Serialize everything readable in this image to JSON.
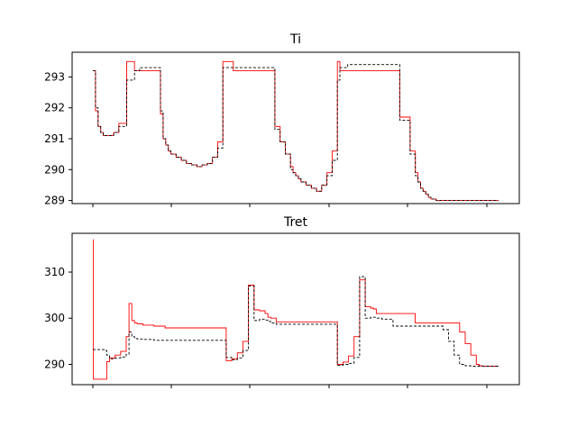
{
  "chart_data": [
    {
      "type": "line",
      "title": "Ti",
      "xlabel": "",
      "ylabel": "",
      "ylim": [
        288.9,
        293.8
      ],
      "yticks": [
        "289",
        "290",
        "291",
        "292",
        "293"
      ],
      "grid": false,
      "legend": "none",
      "x": [
        0,
        1,
        2,
        3,
        4,
        6,
        8,
        10,
        13,
        16,
        18,
        20,
        22,
        24,
        25,
        26,
        27,
        28,
        29,
        30,
        32,
        34,
        36,
        38,
        40,
        42,
        44,
        46,
        48,
        50,
        54,
        58,
        62,
        66,
        70,
        72,
        74,
        76,
        77,
        78,
        79,
        80,
        82,
        84,
        86,
        88,
        90,
        92,
        94,
        95,
        96,
        98,
        102,
        106,
        110,
        114,
        118,
        122,
        124,
        125,
        126,
        127,
        128,
        129,
        130,
        132,
        134,
        136,
        138,
        139,
        140,
        141,
        142,
        143,
        144,
        146,
        148,
        150,
        152,
        154,
        156
      ],
      "series": [
        {
          "color": "#ff0000",
          "dash": "solid",
          "values": [
            293.2,
            291.9,
            291.4,
            291.2,
            291.1,
            291.1,
            291.2,
            291.5,
            293.5,
            293.2,
            293.2,
            293.2,
            293.2,
            293.2,
            293.2,
            291.8,
            291.0,
            290.8,
            290.6,
            290.5,
            290.4,
            290.3,
            290.2,
            290.15,
            290.1,
            290.15,
            290.2,
            290.4,
            290.9,
            293.5,
            293.2,
            293.2,
            293.2,
            293.2,
            291.4,
            290.9,
            290.5,
            290.1,
            289.9,
            289.8,
            289.7,
            289.6,
            289.5,
            289.4,
            289.3,
            289.5,
            289.9,
            290.6,
            293.5,
            293.2,
            293.2,
            293.2,
            293.2,
            293.2,
            293.2,
            293.2,
            291.7,
            290.6,
            289.9,
            289.6,
            289.4,
            289.3,
            289.2,
            289.1,
            289.05,
            289.0,
            289.0,
            289.0,
            289.0,
            289.0,
            289.0,
            289.0,
            289.0,
            289.0,
            289.0,
            289.0,
            289.0,
            289.0,
            289.0,
            289.0,
            289.0
          ]
        },
        {
          "color": "#000000",
          "dash": "dashed",
          "values": [
            293.2,
            292.0,
            291.4,
            291.2,
            291.1,
            291.1,
            291.2,
            291.4,
            292.9,
            293.2,
            293.3,
            293.3,
            293.3,
            293.3,
            293.3,
            291.9,
            291.0,
            290.8,
            290.6,
            290.5,
            290.4,
            290.3,
            290.2,
            290.15,
            290.1,
            290.15,
            290.2,
            290.4,
            290.7,
            293.3,
            293.3,
            293.3,
            293.3,
            293.3,
            291.3,
            290.9,
            290.5,
            290.0,
            289.9,
            289.8,
            289.7,
            289.6,
            289.5,
            289.4,
            289.3,
            289.5,
            289.8,
            290.3,
            292.9,
            293.3,
            293.3,
            293.4,
            293.4,
            293.4,
            293.4,
            293.4,
            291.6,
            290.5,
            289.8,
            289.6,
            289.4,
            289.3,
            289.2,
            289.1,
            289.05,
            289.0,
            289.0,
            289.0,
            289.0,
            289.0,
            289.0,
            289.0,
            289.0,
            289.0,
            289.0,
            289.0,
            289.0,
            289.0,
            289.0,
            289.0,
            289.0
          ]
        }
      ]
    },
    {
      "type": "line",
      "title": "Tret",
      "xlabel": "",
      "ylabel": "",
      "ylim": [
        285.6,
        318.4
      ],
      "yticks": [
        "290",
        "300",
        "310"
      ],
      "grid": false,
      "legend": "none",
      "x": [
        0,
        0.2,
        1,
        4,
        5,
        6,
        8,
        10,
        12,
        13,
        14,
        15,
        16,
        18,
        22,
        26,
        30,
        35,
        40,
        45,
        48,
        50,
        52,
        54,
        56,
        58,
        60,
        62,
        63,
        64,
        66,
        70,
        75,
        80,
        85,
        88,
        90,
        92,
        94,
        96,
        98,
        100,
        101,
        102,
        104,
        108,
        112,
        116,
        120,
        124,
        126,
        128,
        130,
        132,
        134,
        136,
        138,
        139,
        140,
        142,
        146
      ],
      "series": [
        {
          "color": "#ff0000",
          "dash": "solid",
          "values": [
            317.0,
            286.8,
            286.8,
            286.8,
            290.6,
            291.4,
            292.0,
            292.8,
            296.0,
            303.2,
            299.5,
            299.0,
            298.8,
            298.5,
            298.3,
            297.9,
            297.9,
            297.9,
            297.9,
            297.9,
            290.8,
            291.2,
            292.5,
            295.0,
            307.2,
            301.8,
            301.6,
            301.0,
            300.2,
            300.0,
            299.2,
            299.2,
            299.2,
            299.2,
            299.2,
            290.0,
            290.5,
            291.8,
            296.0,
            308.3,
            302.5,
            302.2,
            302.0,
            301.0,
            301.0,
            301.0,
            301.0,
            299.0,
            299.0,
            299.0,
            299.0,
            299.0,
            299.0,
            297.0,
            294.5,
            292.0,
            290.0,
            289.7,
            289.6,
            289.6,
            289.6
          ]
        },
        {
          "color": "#000000",
          "dash": "dashed",
          "values": [
            293.2,
            293.2,
            293.2,
            293.0,
            292.0,
            291.2,
            291.4,
            291.6,
            292.2,
            297.0,
            296.0,
            295.6,
            295.5,
            295.4,
            295.2,
            295.2,
            295.2,
            295.2,
            295.2,
            295.2,
            291.5,
            291.0,
            291.4,
            293.0,
            307.0,
            299.5,
            299.8,
            299.6,
            299.3,
            299.0,
            298.7,
            298.7,
            298.7,
            298.7,
            298.7,
            289.8,
            290.0,
            290.2,
            291.5,
            309.0,
            300.0,
            300.2,
            300.2,
            300.0,
            299.8,
            298.3,
            298.3,
            298.3,
            298.3,
            298.3,
            297.5,
            295.0,
            292.0,
            290.0,
            289.7,
            289.6,
            289.6,
            289.6,
            289.6,
            289.6,
            289.6
          ]
        }
      ]
    }
  ]
}
